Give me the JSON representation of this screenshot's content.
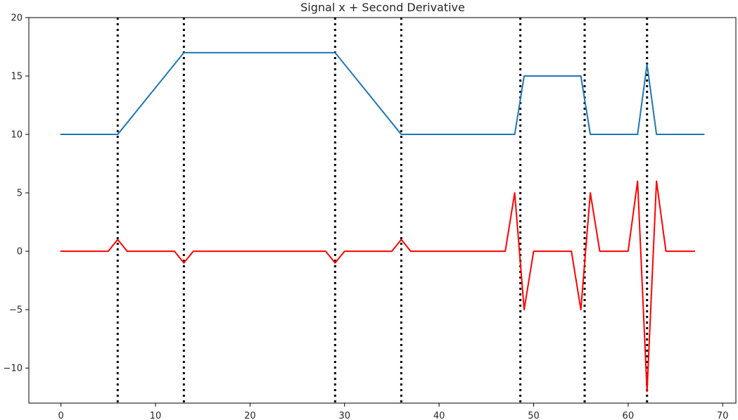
{
  "chart_data": {
    "type": "line",
    "title": "Signal x + Second Derivative",
    "xlabel": "",
    "ylabel": "",
    "xlim": [
      -3.4,
      71.4
    ],
    "ylim": [
      -13,
      20
    ],
    "xticks": [
      0,
      10,
      20,
      30,
      40,
      50,
      60,
      70
    ],
    "yticks": [
      -10,
      -5,
      0,
      5,
      10,
      15,
      20
    ],
    "grid": false,
    "legend": "none",
    "series": [
      {
        "color": "#1f77b4",
        "x": [
          0,
          6,
          13,
          29,
          36,
          48,
          49,
          55,
          56,
          61,
          62,
          63,
          68
        ],
        "y": [
          10,
          10,
          17,
          17,
          10,
          10,
          15,
          15,
          10,
          10,
          16,
          10,
          10
        ]
      },
      {
        "color": "#ff0000",
        "x": [
          0,
          5,
          6,
          7,
          12,
          13,
          14,
          28,
          29,
          30,
          35,
          36,
          37,
          47,
          48,
          49,
          50,
          54,
          55,
          56,
          57,
          60,
          61,
          62,
          63,
          64,
          67
        ],
        "y": [
          0,
          0,
          1,
          0,
          0,
          -1,
          0,
          0,
          -1,
          0,
          0,
          1,
          0,
          0,
          5,
          -5,
          0,
          0,
          -5,
          5,
          0,
          0,
          6,
          -12,
          6,
          0,
          0
        ]
      }
    ],
    "vlines": {
      "color": "#000000",
      "style": "dotted",
      "x": [
        6,
        13,
        29,
        36,
        48.6,
        55.4,
        62
      ]
    }
  }
}
